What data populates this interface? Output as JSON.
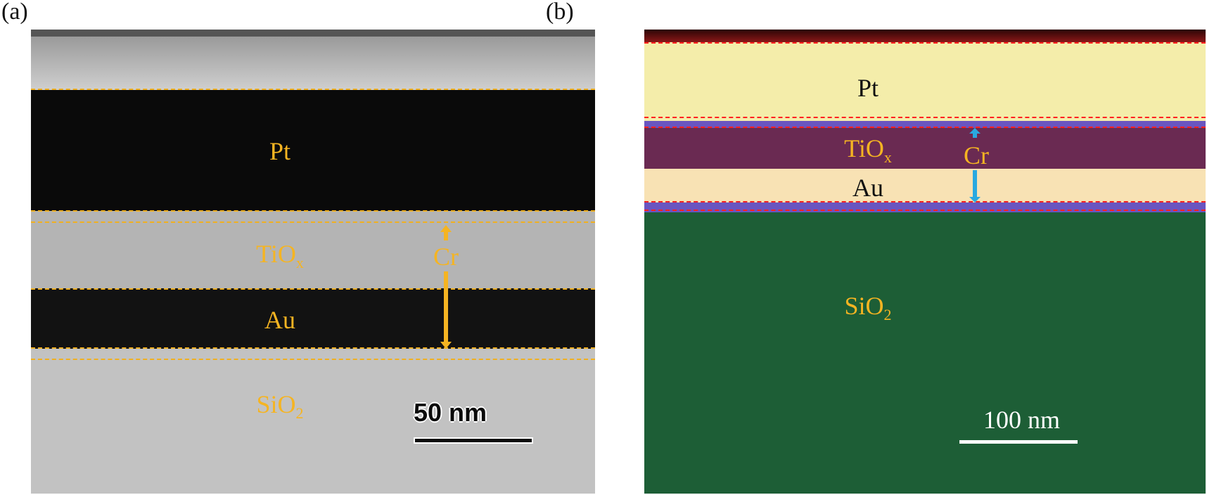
{
  "panels": [
    {
      "label": "(a)",
      "layers": {
        "pt": "Pt",
        "tiox_main": "TiO",
        "tiox_sub": "x",
        "au": "Au",
        "sio2_main": "SiO",
        "sio2_sub": "2",
        "cr": "Cr"
      },
      "scale_bar": "50 nm"
    },
    {
      "label": "(b)",
      "layers": {
        "pt": "Pt",
        "tiox_main": "TiO",
        "tiox_sub": "x",
        "au": "Au",
        "sio2_main": "SiO",
        "sio2_sub": "2",
        "cr": "Cr"
      },
      "scale_bar": "100 nm"
    }
  ],
  "colors": {
    "label_orange": "#f5b422",
    "cr_arrow_a": "#f5b422",
    "cr_arrow_b": "#29a9e0",
    "dash_a": "#f0b020",
    "dash_b": "#ff2020",
    "pt_text_b": "#111111"
  }
}
